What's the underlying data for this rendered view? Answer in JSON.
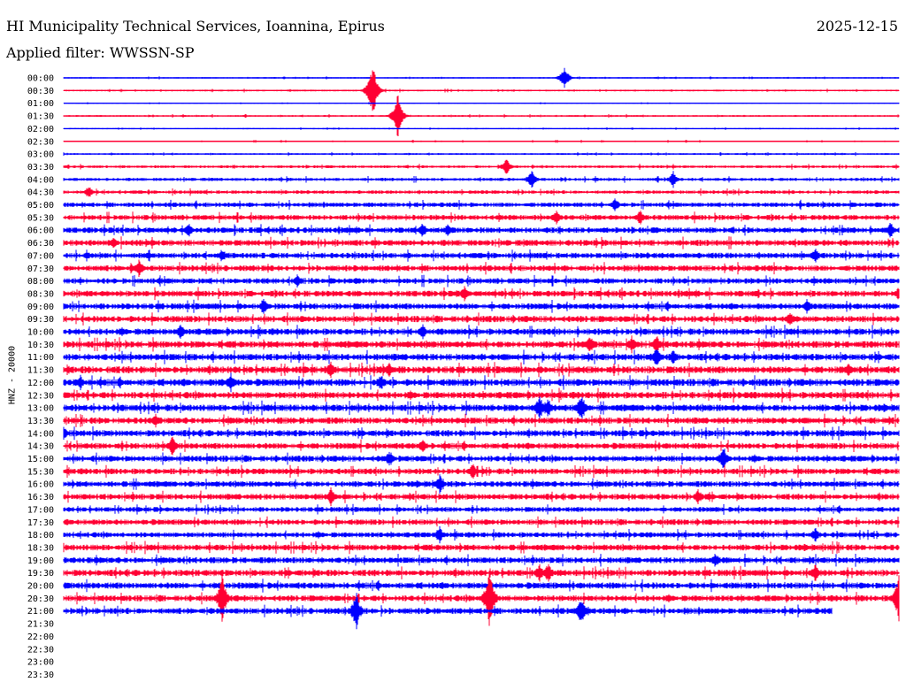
{
  "header": {
    "station": "HI Municipality Technical Services, Ioannina, Epirus",
    "date": "2025-12-15",
    "filter": "Applied filter: WWSSN-SP"
  },
  "chart_data": {
    "type": "line",
    "title": "HI Municipality Technical Services, Ioannina, Epirus",
    "subtitle": "Applied filter: WWSSN-SP",
    "ylabel": "HNZ - 20000",
    "y_tick_labels": [
      "00:00",
      "00:30",
      "01:00",
      "01:30",
      "02:00",
      "02:30",
      "03:00",
      "03:30",
      "04:00",
      "04:30",
      "05:00",
      "05:30",
      "06:00",
      "06:30",
      "07:00",
      "07:30",
      "08:00",
      "08:30",
      "09:00",
      "09:30",
      "10:00",
      "10:30",
      "11:00",
      "11:30",
      "12:00",
      "12:30",
      "13:00",
      "13:30",
      "14:00",
      "14:30",
      "15:00",
      "15:30",
      "16:00",
      "16:30",
      "17:00",
      "17:30",
      "18:00",
      "18:30",
      "19:00",
      "19:30",
      "20:00",
      "20:30",
      "21:00",
      "21:30",
      "22:00",
      "22:30",
      "23:00",
      "23:30"
    ],
    "x_range_minutes": [
      0,
      30
    ],
    "recorded_traces": 43,
    "last_trace_end_fraction": 0.92,
    "noise_level_per_trace": [
      0.8,
      1,
      0.6,
      1,
      0.7,
      0.8,
      1,
      1.6,
      1.8,
      2,
      2.6,
      3,
      3.2,
      3.4,
      3.2,
      3.3,
      3.2,
      3.4,
      3.4,
      3.6,
      3.6,
      3.8,
      3.8,
      4,
      4,
      3.8,
      3.8,
      3.6,
      3.6,
      3.4,
      3.4,
      3.3,
      3.3,
      3.3,
      2.8,
      3.2,
      3,
      3.4,
      3.4,
      3.6,
      3.6,
      3.4,
      3.4
    ],
    "events": [
      {
        "trace": "00:00",
        "t": 0.6,
        "amp": 14
      },
      {
        "trace": "00:30",
        "t": 0.37,
        "amp": 10
      },
      {
        "trace": "00:30",
        "t": 0.37,
        "amp": 36
      },
      {
        "trace": "01:30",
        "t": 0.4,
        "amp": 30
      },
      {
        "trace": "03:30",
        "t": 0.53,
        "amp": 10
      },
      {
        "trace": "04:00",
        "t": 0.56,
        "amp": 12
      },
      {
        "trace": "04:00",
        "t": 0.73,
        "amp": 10
      },
      {
        "trace": "04:30",
        "t": 0.03,
        "amp": 8
      },
      {
        "trace": "05:00",
        "t": 0.66,
        "amp": 9
      },
      {
        "trace": "05:30",
        "t": 0.59,
        "amp": 9
      },
      {
        "trace": "05:30",
        "t": 0.69,
        "amp": 10
      },
      {
        "trace": "06:00",
        "t": 0.15,
        "amp": 10
      },
      {
        "trace": "06:00",
        "t": 0.43,
        "amp": 10
      },
      {
        "trace": "06:00",
        "t": 0.46,
        "amp": 9
      },
      {
        "trace": "06:00",
        "t": 0.99,
        "amp": 10
      },
      {
        "trace": "06:30",
        "t": 0.06,
        "amp": 8
      },
      {
        "trace": "07:00",
        "t": 0.19,
        "amp": 9
      },
      {
        "trace": "07:00",
        "t": 0.9,
        "amp": 9
      },
      {
        "trace": "07:30",
        "t": 0.09,
        "amp": 12
      },
      {
        "trace": "08:00",
        "t": 0.28,
        "amp": 8
      },
      {
        "trace": "08:30",
        "t": 0.48,
        "amp": 10
      },
      {
        "trace": "08:30",
        "t": 1.0,
        "amp": 9
      },
      {
        "trace": "09:00",
        "t": 0.24,
        "amp": 10
      },
      {
        "trace": "09:00",
        "t": 0.89,
        "amp": 9
      },
      {
        "trace": "09:30",
        "t": 0.87,
        "amp": 10
      },
      {
        "trace": "10:00",
        "t": 0.14,
        "amp": 10
      },
      {
        "trace": "10:00",
        "t": 0.43,
        "amp": 9
      },
      {
        "trace": "10:30",
        "t": 0.63,
        "amp": 12
      },
      {
        "trace": "10:30",
        "t": 0.68,
        "amp": 11
      },
      {
        "trace": "10:30",
        "t": 0.71,
        "amp": 12
      },
      {
        "trace": "11:00",
        "t": 0.71,
        "amp": 14
      },
      {
        "trace": "11:00",
        "t": 0.73,
        "amp": 10
      },
      {
        "trace": "11:30",
        "t": 0.32,
        "amp": 12
      },
      {
        "trace": "11:30",
        "t": 0.39,
        "amp": 10
      },
      {
        "trace": "11:30",
        "t": 0.94,
        "amp": 9
      },
      {
        "trace": "12:00",
        "t": 0.02,
        "amp": 9
      },
      {
        "trace": "12:00",
        "t": 0.2,
        "amp": 12
      },
      {
        "trace": "12:00",
        "t": 0.38,
        "amp": 10
      },
      {
        "trace": "13:00",
        "t": 0.57,
        "amp": 16
      },
      {
        "trace": "13:00",
        "t": 0.58,
        "amp": 14
      },
      {
        "trace": "13:00",
        "t": 0.62,
        "amp": 18
      },
      {
        "trace": "13:30",
        "t": 0.11,
        "amp": 9
      },
      {
        "trace": "14:00",
        "t": 0.0,
        "amp": 9
      },
      {
        "trace": "14:30",
        "t": 0.13,
        "amp": 12
      },
      {
        "trace": "14:30",
        "t": 0.43,
        "amp": 9
      },
      {
        "trace": "15:00",
        "t": 0.39,
        "amp": 10
      },
      {
        "trace": "15:00",
        "t": 0.79,
        "amp": 16
      },
      {
        "trace": "15:30",
        "t": 0.49,
        "amp": 11
      },
      {
        "trace": "16:00",
        "t": 0.45,
        "amp": 12
      },
      {
        "trace": "16:30",
        "t": 0.32,
        "amp": 11
      },
      {
        "trace": "16:30",
        "t": 0.76,
        "amp": 10
      },
      {
        "trace": "18:00",
        "t": 0.45,
        "amp": 11
      },
      {
        "trace": "18:00",
        "t": 0.9,
        "amp": 9
      },
      {
        "trace": "19:00",
        "t": 0.78,
        "amp": 10
      },
      {
        "trace": "19:30",
        "t": 0.57,
        "amp": 12
      },
      {
        "trace": "19:30",
        "t": 0.58,
        "amp": 12
      },
      {
        "trace": "19:30",
        "t": 0.9,
        "amp": 11
      },
      {
        "trace": "20:30",
        "t": 0.19,
        "amp": 30
      },
      {
        "trace": "20:30",
        "t": 0.51,
        "amp": 40
      },
      {
        "trace": "20:30",
        "t": 1.0,
        "amp": 30
      },
      {
        "trace": "21:00",
        "t": 0.35,
        "amp": 24
      },
      {
        "trace": "21:00",
        "t": 0.62,
        "amp": 18
      }
    ],
    "colors": {
      "even_traces": "#0000ff",
      "odd_traces": "#ff0033"
    },
    "grid": false
  }
}
